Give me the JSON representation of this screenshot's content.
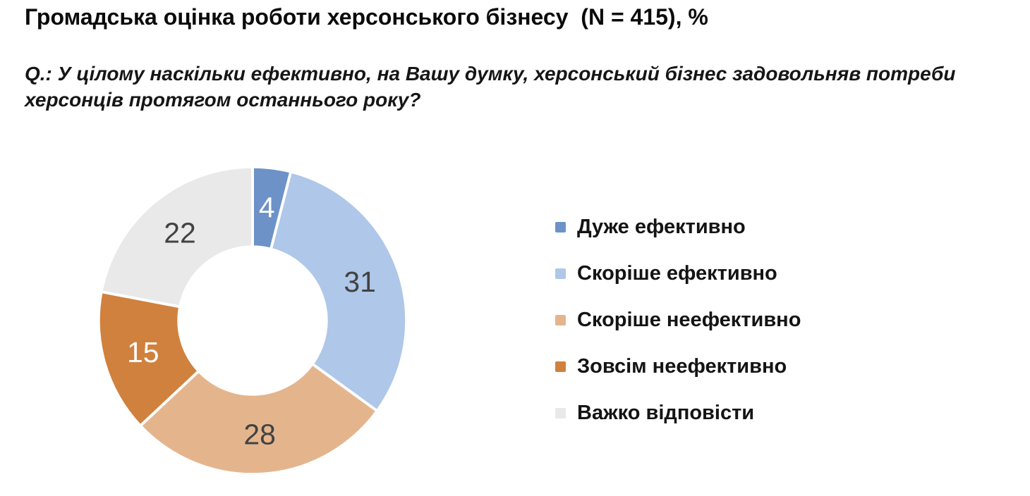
{
  "chart_data": {
    "type": "pie",
    "subtype": "donut",
    "title": "Громадська оцінка роботи херсонського бізнесу  (N = 415), %",
    "question": "Q.: У цілому наскільки ефективно, на Вашу думку, херсонський бізнес задовольняв потреби херсонців протягом останнього року?",
    "categories": [
      "Дуже ефективно",
      "Скоріше ефективно",
      "Скоріше неефективно",
      "Зовсім неефективно",
      "Важко відповісти"
    ],
    "values": [
      4,
      31,
      28,
      15,
      22
    ],
    "colors": [
      "#6d92c8",
      "#afc7e8",
      "#e4b58d",
      "#d0813e",
      "#e9e9e9"
    ],
    "value_label_colors": [
      "#ffffff",
      "#424242",
      "#424242",
      "#ffffff",
      "#424242"
    ],
    "start_angle_deg": 0,
    "direction": "clockwise",
    "donut_hole_ratio": 0.48,
    "slice_gap_color": "#ffffff",
    "legend_position": "right",
    "background": "#ffffff"
  }
}
